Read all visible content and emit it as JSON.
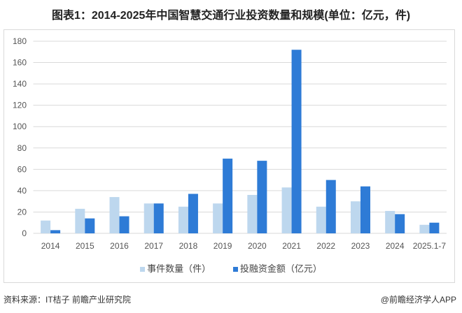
{
  "title": "图表1：2014-2025年中国智慧交通行业投资数量和规模(单位：亿元，件)",
  "source": "资料来源：IT桔子 前瞻产业研究院",
  "brand": "@前瞻经济学人APP",
  "colors": {
    "series1": "#bdd7ee",
    "series2": "#2e7bd6",
    "grid": "#d9d9d9"
  },
  "chart_data": {
    "type": "bar",
    "title": "图表1：2014-2025年中国智慧交通行业投资数量和规模(单位：亿元，件)",
    "categories": [
      "2014",
      "2015",
      "2016",
      "2017",
      "2018",
      "2019",
      "2020",
      "2021",
      "2022",
      "2023",
      "2024",
      "2025.1-7"
    ],
    "series": [
      {
        "name": "事件数量（件）",
        "values": [
          12,
          23,
          34,
          28,
          25,
          28,
          36,
          43,
          25,
          30,
          21,
          8
        ]
      },
      {
        "name": "投融资金额（亿元）",
        "values": [
          3,
          14,
          16,
          28,
          37,
          70,
          68,
          172,
          50,
          44,
          18,
          10
        ]
      }
    ],
    "ylim": [
      0,
      180
    ],
    "yticks": [
      0,
      20,
      40,
      60,
      80,
      100,
      120,
      140,
      160,
      180
    ],
    "grid": true,
    "legend": "bottom"
  }
}
